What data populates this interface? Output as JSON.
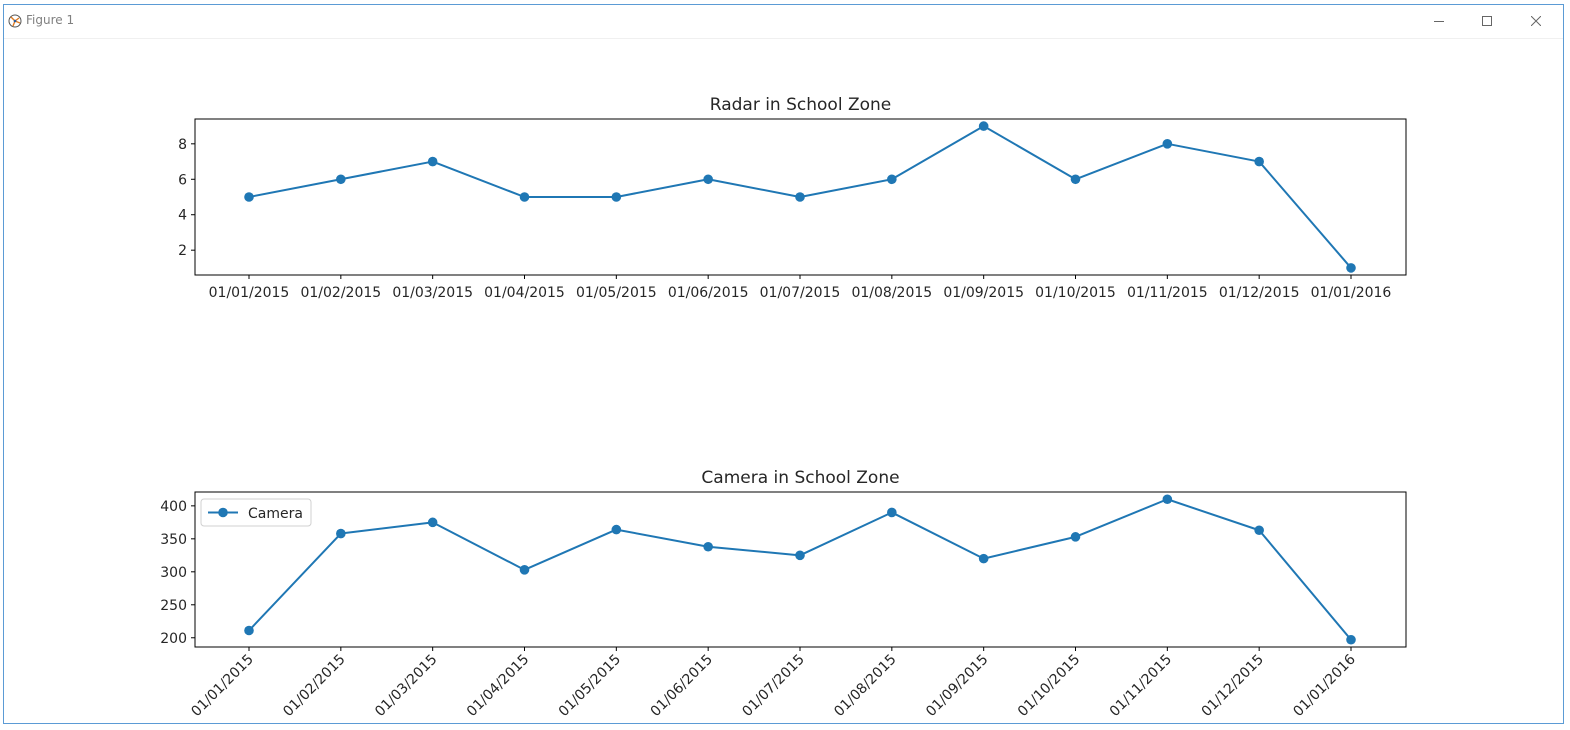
{
  "window": {
    "title": "Figure 1",
    "controls": [
      "minimize-icon",
      "maximize-icon",
      "close-icon"
    ]
  },
  "colors": {
    "line": "#1f77b4",
    "axes": "#000000",
    "text": "#262626"
  },
  "chart_data": [
    {
      "type": "line",
      "title": "Radar in School Zone",
      "xlabel": "",
      "ylabel": "",
      "categories": [
        "01/01/2015",
        "01/02/2015",
        "01/03/2015",
        "01/04/2015",
        "01/05/2015",
        "01/06/2015",
        "01/07/2015",
        "01/08/2015",
        "01/09/2015",
        "01/10/2015",
        "01/11/2015",
        "01/12/2015",
        "01/01/2016"
      ],
      "series": [
        {
          "values": [
            5,
            6,
            7,
            5,
            5,
            6,
            5,
            6,
            9,
            6,
            8,
            7,
            1
          ]
        }
      ],
      "yticks": [
        2,
        4,
        6,
        8
      ],
      "ylim": [
        0.6,
        9.4
      ],
      "xtick_rotation": 0,
      "legend": false,
      "grid": false
    },
    {
      "type": "line",
      "title": "Camera in School Zone",
      "xlabel": "",
      "ylabel": "",
      "categories": [
        "01/01/2015",
        "01/02/2015",
        "01/03/2015",
        "01/04/2015",
        "01/05/2015",
        "01/06/2015",
        "01/07/2015",
        "01/08/2015",
        "01/09/2015",
        "01/10/2015",
        "01/11/2015",
        "01/12/2015",
        "01/01/2016"
      ],
      "series": [
        {
          "name": "Camera",
          "values": [
            211,
            358,
            375,
            303,
            364,
            338,
            325,
            390,
            320,
            353,
            410,
            363,
            197
          ]
        }
      ],
      "yticks": [
        200,
        250,
        300,
        350,
        400
      ],
      "ylim": [
        186,
        421
      ],
      "xtick_rotation": -45,
      "legend": true,
      "legend_position": "upper left",
      "grid": false
    }
  ]
}
